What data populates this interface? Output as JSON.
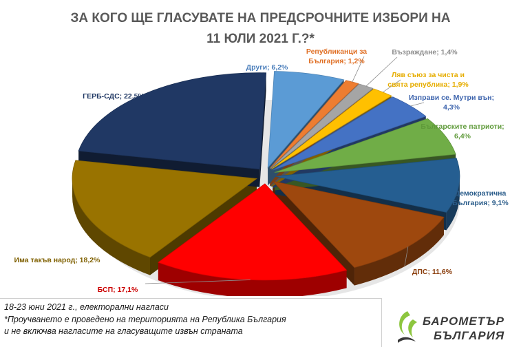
{
  "title": {
    "line1": "ЗА КОГО ЩЕ ГЛАСУВАТЕ НА ПРЕДСРОЧНИТЕ ИЗБОРИ НА",
    "line2": "11 ЮЛИ 2021 Г.?*"
  },
  "chart_data": {
    "type": "pie",
    "slices": [
      {
        "label": "Други; 6,2%",
        "lines": [
          "Други; 6,2%"
        ],
        "value": 6.2,
        "color": "#5b9bd5",
        "label_color": "#4a7ebb"
      },
      {
        "label": "Републиканци за България; 1,2%",
        "lines": [
          "Републиканци за",
          "България; 1,2%"
        ],
        "value": 1.2,
        "color": "#ed7d31",
        "label_color": "#e07026"
      },
      {
        "label": "Възраждане; 1,4%",
        "lines": [
          "Възраждане; 1,4%"
        ],
        "value": 1.4,
        "color": "#a5a5a5",
        "label_color": "#8c8c8c"
      },
      {
        "label": "Ляв съюз за чиста и свята република; 1,9%",
        "lines": [
          "Ляв съюз за чиста и",
          "свята република; 1,9%"
        ],
        "value": 1.9,
        "color": "#ffc000",
        "label_color": "#e6ad00"
      },
      {
        "label": "Изправи се. Мутри вън; 4,3%",
        "lines": [
          "Изправи се. Мутри вън;",
          "4,3%"
        ],
        "value": 4.3,
        "color": "#4472c4",
        "label_color": "#3d64ad"
      },
      {
        "label": "Българските патриоти; 6,4%",
        "lines": [
          "Българските патриоти;",
          "6,4%"
        ],
        "value": 6.4,
        "color": "#70ad47",
        "label_color": "#5f9a3a"
      },
      {
        "label": "Демократична България; 9,1%",
        "lines": [
          "Демократична",
          "България; 9,1%"
        ],
        "value": 9.1,
        "color": "#255e91",
        "label_color": "#2a5c8a"
      },
      {
        "label": "ДПС; 11,6%",
        "lines": [
          "ДПС; 11,6%"
        ],
        "value": 11.6,
        "color": "#9e480e",
        "label_color": "#8a3d0c"
      },
      {
        "label": "БСП; 17,1%",
        "lines": [
          "БСП; 17,1%"
        ],
        "value": 17.1,
        "color": "#ff0000",
        "label_color": "#cc0000"
      },
      {
        "label": "Има такъв народ; 18,2%",
        "lines": [
          "Има такъв народ; 18,2%"
        ],
        "value": 18.2,
        "color": "#997300",
        "label_color": "#7f6000"
      },
      {
        "label": "ГЕРБ-СДС; 22,5%",
        "lines": [
          "ГЕРБ-СДС; 22,5%"
        ],
        "value": 22.5,
        "color": "#203864",
        "label_color": "#203864"
      }
    ]
  },
  "footer": {
    "line1": "18-23 юни 2021 г., електорални нагласи",
    "line2": "*Проучването е проведено на територията на Република България",
    "line3": "и не включва нагласите на гласуващите извън страната"
  },
  "logo": {
    "line1": "БАРОМЕТЪР",
    "line2": "БЪЛГАРИЯ",
    "color_green": "#8dc63f",
    "color_dark": "#3a3a3a"
  }
}
